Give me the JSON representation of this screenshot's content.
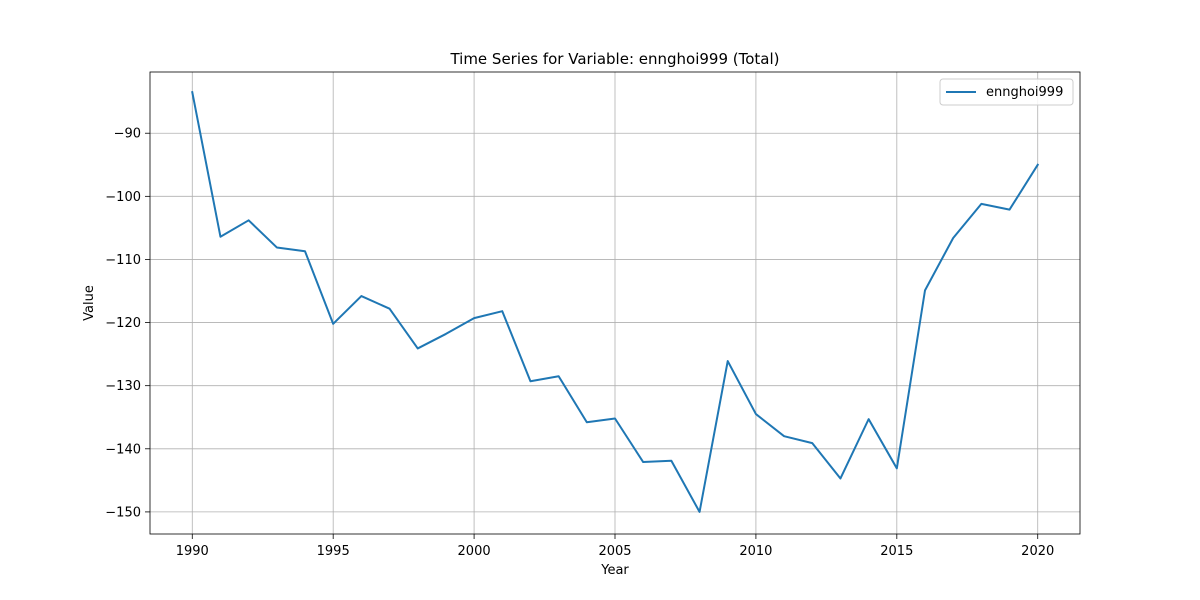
{
  "chart_data": {
    "type": "line",
    "title": "Time Series for Variable: ennghoi999 (Total)",
    "xlabel": "Year",
    "ylabel": "Value",
    "xlim": [
      1988.5,
      2021.5
    ],
    "ylim": [
      -153.5,
      -80.3
    ],
    "xticks": [
      1990,
      1995,
      2000,
      2005,
      2010,
      2015,
      2020
    ],
    "yticks": [
      -150,
      -140,
      -130,
      -120,
      -110,
      -100,
      -90
    ],
    "grid": true,
    "legend_position": "upper-right",
    "series": [
      {
        "name": "ennghoi999",
        "color": "#1f77b4",
        "x": [
          1990,
          1991,
          1992,
          1993,
          1994,
          1995,
          1996,
          1997,
          1998,
          1999,
          2000,
          2001,
          2002,
          2003,
          2004,
          2005,
          2006,
          2007,
          2008,
          2009,
          2010,
          2011,
          2012,
          2013,
          2014,
          2015,
          2016,
          2017,
          2018,
          2019,
          2020
        ],
        "y": [
          -83.5,
          -106.4,
          -103.8,
          -108.1,
          -108.7,
          -120.2,
          -115.8,
          -117.8,
          -124.1,
          -121.8,
          -119.3,
          -118.2,
          -129.3,
          -128.5,
          -135.8,
          -135.2,
          -142.1,
          -141.9,
          -150.0,
          -126.1,
          -134.5,
          -138.0,
          -139.1,
          -144.7,
          -135.3,
          -143.1,
          -114.9,
          -106.6,
          -101.2,
          -102.1,
          -95.0
        ]
      }
    ]
  }
}
